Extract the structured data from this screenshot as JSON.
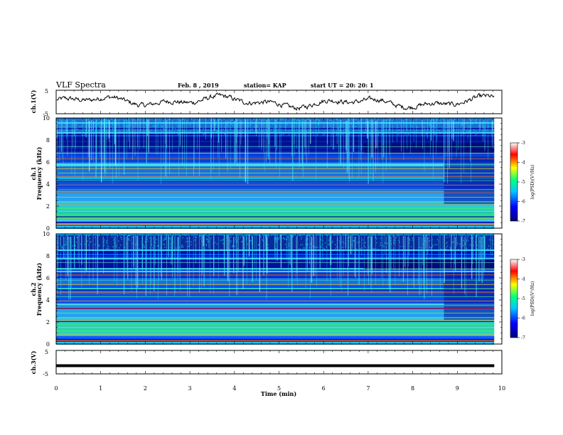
{
  "header": {
    "title": "VLF Spectra",
    "date": "Feb. 8 , 2019",
    "station": "station= KAP",
    "start": "start UT = 20: 20: 1"
  },
  "chart_data": [
    {
      "type": "line",
      "panel": "ch1-waveform",
      "ylabel": "ch.1(V)",
      "yticks": [
        "5",
        "-5"
      ],
      "ylim": [
        -5,
        5
      ],
      "xlim": [
        0,
        10
      ],
      "x_end_min": 9.83,
      "description_series": "noisy waveform, amplitude roughly -3 to 3 V"
    },
    {
      "type": "heatmap",
      "panel": "ch1-spectrogram",
      "ylabel": "ch.1\nFrequency (kHz)",
      "ylabel_line1": "ch.1",
      "ylabel_line2": "Frequency (kHz)",
      "yticks": [
        "0",
        "2",
        "4",
        "6",
        "8",
        "10"
      ],
      "ylim": [
        0,
        10
      ],
      "xlim": [
        0,
        10
      ],
      "x_end_min": 9.83,
      "colorbar": {
        "label": "log(PSD)(V²/Hz)",
        "ticks": [
          "-3",
          "-4",
          "-5",
          "-6",
          "-7"
        ],
        "range": [
          -7,
          -3
        ],
        "colors": [
          "#00007a",
          "#0000ff",
          "#00c8ff",
          "#00ff80",
          "#ffff00",
          "#ff0000",
          "#ffffff"
        ]
      },
      "changes_at_min": [
        6.9,
        8.7
      ]
    },
    {
      "type": "heatmap",
      "panel": "ch2-spectrogram",
      "ylabel_line1": "ch.2",
      "ylabel_line2": "Frequency (kHz)",
      "yticks": [
        "0",
        "2",
        "4",
        "6",
        "8",
        "10"
      ],
      "ylim": [
        0,
        10
      ],
      "xlim": [
        0,
        10
      ],
      "x_end_min": 9.83,
      "colorbar": {
        "label": "log(PSD)(V²/Hz)",
        "ticks": [
          "-3",
          "-4",
          "-5",
          "-6",
          "-7"
        ],
        "range": [
          -7,
          -3
        ]
      },
      "changes_at_min": [
        6.9,
        8.7
      ]
    },
    {
      "type": "line",
      "panel": "ch3-waveform",
      "ylabel": "ch.3(V)",
      "yticks": [
        "5",
        "-5"
      ],
      "ylim": [
        -5,
        5
      ],
      "constant_value": -1.5,
      "xlim": [
        0,
        10
      ],
      "x_end_min": 9.83
    }
  ],
  "xaxis": {
    "label": "Time  (min)",
    "ticks": [
      "0",
      "1",
      "2",
      "3",
      "4",
      "5",
      "6",
      "7",
      "8",
      "9",
      "10"
    ],
    "range": [
      0,
      10
    ]
  }
}
